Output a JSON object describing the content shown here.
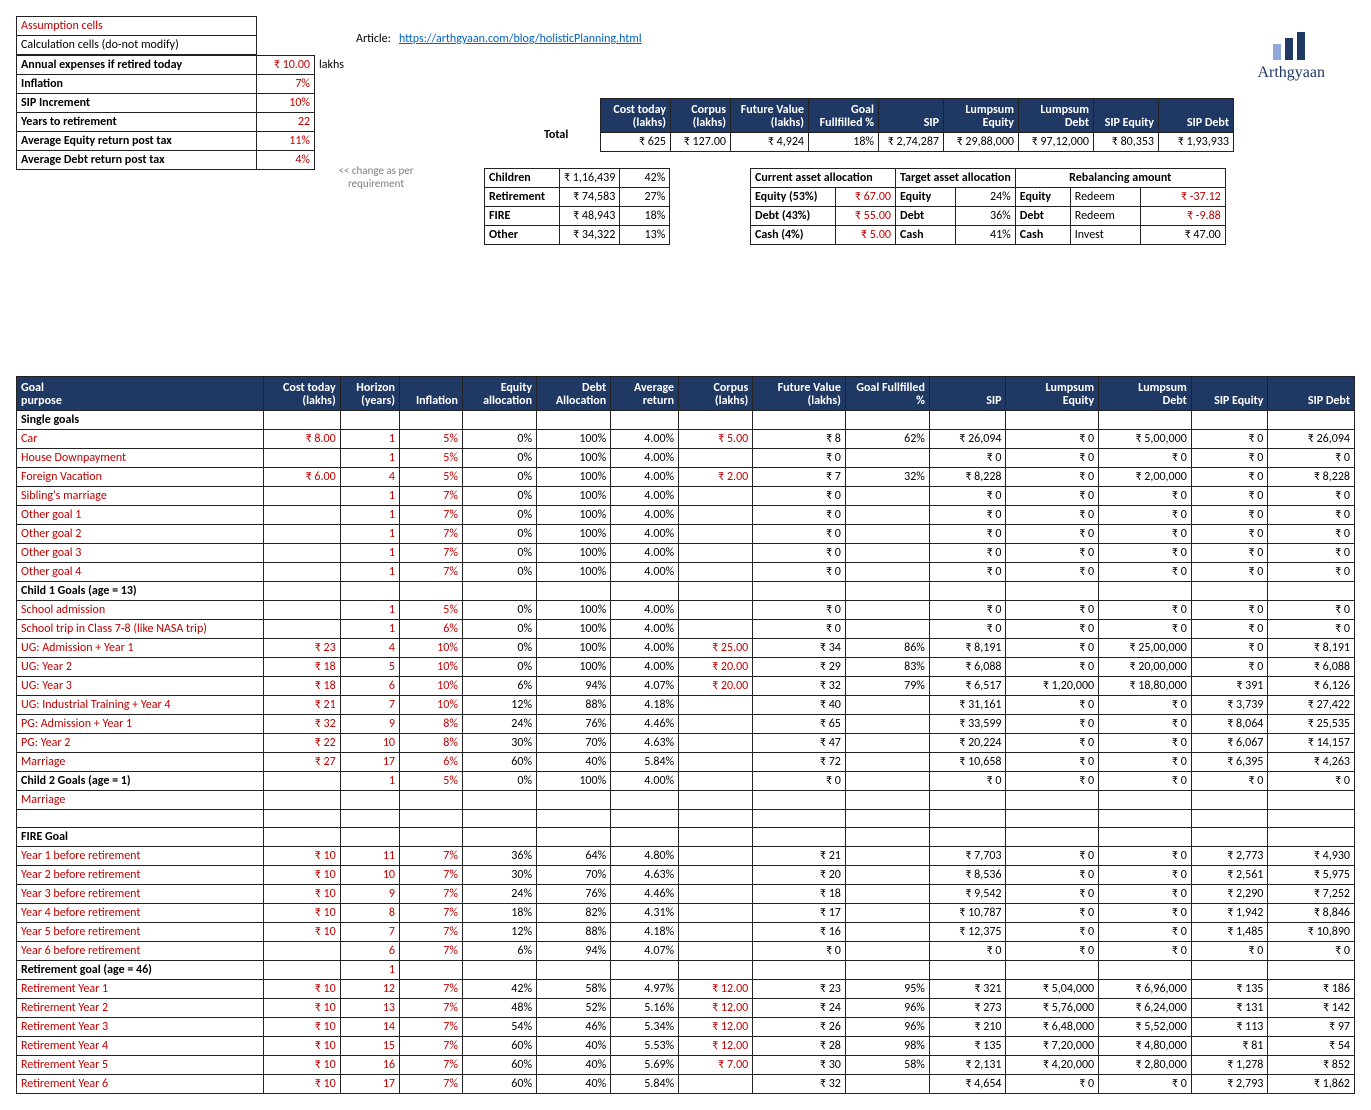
{
  "article_label": "Article:",
  "article_url": "https://arthgyaan.com/blog/holisticPlanning.html",
  "brand": "Arthgyaan",
  "brand_colors": [
    "#8fa8d9",
    "#1f3864",
    "#1f3864"
  ],
  "legend": {
    "assump": "Assumption cells",
    "calc": "Calculation cells (do-not modify)"
  },
  "assumptions": [
    {
      "label": "Annual expenses if retired today",
      "value": "₹ 10.00",
      "unit": "lakhs",
      "bold": true
    },
    {
      "label": "Inflation",
      "value": "7%",
      "bold": true
    },
    {
      "label": "SIP Increment",
      "value": "10%",
      "bold": true
    },
    {
      "label": "Years to retirement",
      "value": "22",
      "bold": true
    },
    {
      "label": "Average Equity return post tax",
      "value": "11%",
      "bold": true
    },
    {
      "label": "Average Debt return post tax",
      "value": "4%",
      "bold": true
    }
  ],
  "hint": "<< change as per requirement",
  "summary_header": [
    "Cost today (lakhs)",
    "Corpus (lakhs)",
    "Future Value (lakhs)",
    "Goal Fullfilled %",
    "SIP",
    "Lumpsum Equity",
    "Lumpsum Debt",
    "SIP Equity",
    "SIP Debt"
  ],
  "total_row": {
    "label": "Total",
    "cost": "₹ 625",
    "corpus": "₹ 127.00",
    "fv": "₹ 4,924",
    "ff": "18%",
    "sip": "₹ 2,74,287",
    "le": "₹ 29,88,000",
    "ld": "₹ 97,12,000",
    "se": "₹ 80,353",
    "sd": "₹ 1,93,933"
  },
  "categories": [
    {
      "name": "Children",
      "amount": "₹ 1,16,439",
      "pct": "42%"
    },
    {
      "name": "Retirement",
      "amount": "₹ 74,583",
      "pct": "27%"
    },
    {
      "name": "FIRE",
      "amount": "₹ 48,943",
      "pct": "18%"
    },
    {
      "name": "Other",
      "amount": "₹ 34,322",
      "pct": "13%"
    }
  ],
  "current_alloc": {
    "title": "Current asset allocation",
    "rows": [
      {
        "lbl": "Equity (53%)",
        "val": "₹ 67.00"
      },
      {
        "lbl": "Debt (43%)",
        "val": "₹ 55.00"
      },
      {
        "lbl": "Cash (4%)",
        "val": "₹ 5.00"
      }
    ]
  },
  "target_alloc": {
    "title": "Target asset allocation",
    "rows": [
      {
        "lbl": "Equity",
        "val": "24%"
      },
      {
        "lbl": "Debt",
        "val": "36%"
      },
      {
        "lbl": "Cash",
        "val": "41%"
      }
    ]
  },
  "rebal": {
    "title": "Rebalancing amount",
    "rows": [
      {
        "lbl": "Equity",
        "act": "Redeem",
        "val": "₹ -37.12",
        "red": true
      },
      {
        "lbl": "Debt",
        "act": "Redeem",
        "val": "₹ -9.88",
        "red": true
      },
      {
        "lbl": "Cash",
        "act": "Invest",
        "val": "₹ 47.00",
        "red": false
      }
    ]
  },
  "goal_header": [
    "Goal purpose",
    "Cost today (lakhs)",
    "Horizon (years)",
    "Inflation",
    "Equity allocation",
    "Debt Allocation",
    "Average return",
    "Corpus (lakhs)",
    "Future Value (lakhs)",
    "Goal Fullfilled %",
    "SIP",
    "Lumpsum Equity",
    "Lumpsum Debt",
    "SIP Equity",
    "SIP Debt"
  ],
  "sections": [
    {
      "title": "Single goals",
      "rows": [
        {
          "g": "Car",
          "cost": "₹ 8.00",
          "hor": "1",
          "inf": "5%",
          "ea": "0%",
          "da": "100%",
          "ar": "4.00%",
          "cor": "₹ 5.00",
          "fv": "₹ 8",
          "ff": "62%",
          "sip": "₹ 26,094",
          "le": "₹ 0",
          "ld": "₹ 5,00,000",
          "se": "₹ 0",
          "sd": "₹ 26,094"
        },
        {
          "g": "House Downpayment",
          "cost": "",
          "hor": "1",
          "inf": "5%",
          "ea": "0%",
          "da": "100%",
          "ar": "4.00%",
          "cor": "",
          "fv": "₹ 0",
          "ff": "",
          "sip": "₹ 0",
          "le": "₹ 0",
          "ld": "₹ 0",
          "se": "₹ 0",
          "sd": "₹ 0"
        },
        {
          "g": "Foreign Vacation",
          "cost": "₹ 6.00",
          "hor": "4",
          "inf": "5%",
          "ea": "0%",
          "da": "100%",
          "ar": "4.00%",
          "cor": "₹ 2.00",
          "fv": "₹ 7",
          "ff": "32%",
          "sip": "₹ 8,228",
          "le": "₹ 0",
          "ld": "₹ 2,00,000",
          "se": "₹ 0",
          "sd": "₹ 8,228"
        },
        {
          "g": "Sibling's marriage",
          "cost": "",
          "hor": "1",
          "inf": "7%",
          "ea": "0%",
          "da": "100%",
          "ar": "4.00%",
          "cor": "",
          "fv": "₹ 0",
          "ff": "",
          "sip": "₹ 0",
          "le": "₹ 0",
          "ld": "₹ 0",
          "se": "₹ 0",
          "sd": "₹ 0"
        },
        {
          "g": "Other goal 1",
          "cost": "",
          "hor": "1",
          "inf": "7%",
          "ea": "0%",
          "da": "100%",
          "ar": "4.00%",
          "cor": "",
          "fv": "₹ 0",
          "ff": "",
          "sip": "₹ 0",
          "le": "₹ 0",
          "ld": "₹ 0",
          "se": "₹ 0",
          "sd": "₹ 0"
        },
        {
          "g": "Other goal 2",
          "cost": "",
          "hor": "1",
          "inf": "7%",
          "ea": "0%",
          "da": "100%",
          "ar": "4.00%",
          "cor": "",
          "fv": "₹ 0",
          "ff": "",
          "sip": "₹ 0",
          "le": "₹ 0",
          "ld": "₹ 0",
          "se": "₹ 0",
          "sd": "₹ 0"
        },
        {
          "g": "Other goal 3",
          "cost": "",
          "hor": "1",
          "inf": "7%",
          "ea": "0%",
          "da": "100%",
          "ar": "4.00%",
          "cor": "",
          "fv": "₹ 0",
          "ff": "",
          "sip": "₹ 0",
          "le": "₹ 0",
          "ld": "₹ 0",
          "se": "₹ 0",
          "sd": "₹ 0"
        },
        {
          "g": "Other goal 4",
          "cost": "",
          "hor": "1",
          "inf": "7%",
          "ea": "0%",
          "da": "100%",
          "ar": "4.00%",
          "cor": "",
          "fv": "₹ 0",
          "ff": "",
          "sip": "₹ 0",
          "le": "₹ 0",
          "ld": "₹ 0",
          "se": "₹ 0",
          "sd": "₹ 0"
        }
      ]
    },
    {
      "title": "Child 1 Goals (age = 13)",
      "rows": [
        {
          "g": "School admission",
          "cost": "",
          "hor": "1",
          "inf": "5%",
          "ea": "0%",
          "da": "100%",
          "ar": "4.00%",
          "cor": "",
          "fv": "₹ 0",
          "ff": "",
          "sip": "₹ 0",
          "le": "₹ 0",
          "ld": "₹ 0",
          "se": "₹ 0",
          "sd": "₹ 0"
        },
        {
          "g": "School trip in Class 7-8 (like NASA trip)",
          "cost": "",
          "hor": "1",
          "inf": "6%",
          "ea": "0%",
          "da": "100%",
          "ar": "4.00%",
          "cor": "",
          "fv": "₹ 0",
          "ff": "",
          "sip": "₹ 0",
          "le": "₹ 0",
          "ld": "₹ 0",
          "se": "₹ 0",
          "sd": "₹ 0"
        },
        {
          "g": "UG: Admission + Year 1",
          "cost": "₹ 23",
          "hor": "4",
          "inf": "10%",
          "ea": "0%",
          "da": "100%",
          "ar": "4.00%",
          "cor": "₹ 25.00",
          "fv": "₹ 34",
          "ff": "86%",
          "sip": "₹ 8,191",
          "le": "₹ 0",
          "ld": "₹ 25,00,000",
          "se": "₹ 0",
          "sd": "₹ 8,191"
        },
        {
          "g": "UG: Year 2",
          "cost": "₹ 18",
          "hor": "5",
          "inf": "10%",
          "ea": "0%",
          "da": "100%",
          "ar": "4.00%",
          "cor": "₹ 20.00",
          "fv": "₹ 29",
          "ff": "83%",
          "sip": "₹ 6,088",
          "le": "₹ 0",
          "ld": "₹ 20,00,000",
          "se": "₹ 0",
          "sd": "₹ 6,088"
        },
        {
          "g": "UG: Year 3",
          "cost": "₹ 18",
          "hor": "6",
          "inf": "10%",
          "ea": "6%",
          "da": "94%",
          "ar": "4.07%",
          "cor": "₹ 20.00",
          "fv": "₹ 32",
          "ff": "79%",
          "sip": "₹ 6,517",
          "le": "₹ 1,20,000",
          "ld": "₹ 18,80,000",
          "se": "₹ 391",
          "sd": "₹ 6,126"
        },
        {
          "g": "UG: Industrial Training + Year 4",
          "cost": "₹ 21",
          "hor": "7",
          "inf": "10%",
          "ea": "12%",
          "da": "88%",
          "ar": "4.18%",
          "cor": "",
          "fv": "₹ 40",
          "ff": "",
          "sip": "₹ 31,161",
          "le": "₹ 0",
          "ld": "₹ 0",
          "se": "₹ 3,739",
          "sd": "₹ 27,422"
        },
        {
          "g": "PG: Admission + Year 1",
          "cost": "₹ 32",
          "hor": "9",
          "inf": "8%",
          "ea": "24%",
          "da": "76%",
          "ar": "4.46%",
          "cor": "",
          "fv": "₹ 65",
          "ff": "",
          "sip": "₹ 33,599",
          "le": "₹ 0",
          "ld": "₹ 0",
          "se": "₹ 8,064",
          "sd": "₹ 25,535"
        },
        {
          "g": "PG: Year 2",
          "cost": "₹ 22",
          "hor": "10",
          "inf": "8%",
          "ea": "30%",
          "da": "70%",
          "ar": "4.63%",
          "cor": "",
          "fv": "₹ 47",
          "ff": "",
          "sip": "₹ 20,224",
          "le": "₹ 0",
          "ld": "₹ 0",
          "se": "₹ 6,067",
          "sd": "₹ 14,157"
        },
        {
          "g": "Marriage",
          "cost": "₹ 27",
          "hor": "17",
          "inf": "6%",
          "ea": "60%",
          "da": "40%",
          "ar": "5.84%",
          "cor": "",
          "fv": "₹ 72",
          "ff": "",
          "sip": "₹ 10,658",
          "le": "₹ 0",
          "ld": "₹ 0",
          "se": "₹ 6,395",
          "sd": "₹ 4,263"
        }
      ]
    },
    {
      "title": "Child 2 Goals (age = 1)",
      "title_row_extra": {
        "hor": "1",
        "inf": "5%",
        "ea": "0%",
        "da": "100%",
        "ar": "4.00%",
        "fv": "₹ 0",
        "sip": "₹ 0",
        "le": "₹ 0",
        "ld": "₹ 0",
        "se": "₹ 0",
        "sd": "₹ 0"
      },
      "rows": [
        {
          "g": "Marriage",
          "cost": "",
          "hor": "",
          "inf": "",
          "ea": "",
          "da": "",
          "ar": "",
          "cor": "",
          "fv": "",
          "ff": "",
          "sip": "",
          "le": "",
          "ld": "",
          "se": "",
          "sd": ""
        },
        {
          "g": "",
          "cost": "",
          "hor": "",
          "inf": "",
          "ea": "",
          "da": "",
          "ar": "",
          "cor": "",
          "fv": "",
          "ff": "",
          "sip": "",
          "le": "",
          "ld": "",
          "se": "",
          "sd": ""
        }
      ]
    },
    {
      "title": "FIRE Goal",
      "rows": [
        {
          "g": "Year 1 before retirement",
          "cost": "₹ 10",
          "hor": "11",
          "inf": "7%",
          "ea": "36%",
          "da": "64%",
          "ar": "4.80%",
          "cor": "",
          "fv": "₹ 21",
          "ff": "",
          "sip": "₹ 7,703",
          "le": "₹ 0",
          "ld": "₹ 0",
          "se": "₹ 2,773",
          "sd": "₹ 4,930"
        },
        {
          "g": "Year 2 before retirement",
          "cost": "₹ 10",
          "hor": "10",
          "inf": "7%",
          "ea": "30%",
          "da": "70%",
          "ar": "4.63%",
          "cor": "",
          "fv": "₹ 20",
          "ff": "",
          "sip": "₹ 8,536",
          "le": "₹ 0",
          "ld": "₹ 0",
          "se": "₹ 2,561",
          "sd": "₹ 5,975"
        },
        {
          "g": "Year 3 before retirement",
          "cost": "₹ 10",
          "hor": "9",
          "inf": "7%",
          "ea": "24%",
          "da": "76%",
          "ar": "4.46%",
          "cor": "",
          "fv": "₹ 18",
          "ff": "",
          "sip": "₹ 9,542",
          "le": "₹ 0",
          "ld": "₹ 0",
          "se": "₹ 2,290",
          "sd": "₹ 7,252"
        },
        {
          "g": "Year 4 before retirement",
          "cost": "₹ 10",
          "hor": "8",
          "inf": "7%",
          "ea": "18%",
          "da": "82%",
          "ar": "4.31%",
          "cor": "",
          "fv": "₹ 17",
          "ff": "",
          "sip": "₹ 10,787",
          "le": "₹ 0",
          "ld": "₹ 0",
          "se": "₹ 1,942",
          "sd": "₹ 8,846"
        },
        {
          "g": "Year 5 before retirement",
          "cost": "₹ 10",
          "hor": "7",
          "inf": "7%",
          "ea": "12%",
          "da": "88%",
          "ar": "4.18%",
          "cor": "",
          "fv": "₹ 16",
          "ff": "",
          "sip": "₹ 12,375",
          "le": "₹ 0",
          "ld": "₹ 0",
          "se": "₹ 1,485",
          "sd": "₹ 10,890"
        },
        {
          "g": "Year 6 before retirement",
          "cost": "",
          "hor": "6",
          "inf": "7%",
          "ea": "6%",
          "da": "94%",
          "ar": "4.07%",
          "cor": "",
          "fv": "₹ 0",
          "ff": "",
          "sip": "₹ 0",
          "le": "₹ 0",
          "ld": "₹ 0",
          "se": "₹ 0",
          "sd": "₹ 0"
        }
      ]
    },
    {
      "title": "Retirement goal (age = 46)",
      "title_row_extra": {
        "hor": "1"
      },
      "rows": [
        {
          "g": "Retirement Year 1",
          "cost": "₹ 10",
          "hor": "12",
          "inf": "7%",
          "ea": "42%",
          "da": "58%",
          "ar": "4.97%",
          "cor": "₹ 12.00",
          "fv": "₹ 23",
          "ff": "95%",
          "sip": "₹ 321",
          "le": "₹ 5,04,000",
          "ld": "₹ 6,96,000",
          "se": "₹ 135",
          "sd": "₹ 186"
        },
        {
          "g": "Retirement Year 2",
          "cost": "₹ 10",
          "hor": "13",
          "inf": "7%",
          "ea": "48%",
          "da": "52%",
          "ar": "5.16%",
          "cor": "₹ 12.00",
          "fv": "₹ 24",
          "ff": "96%",
          "sip": "₹ 273",
          "le": "₹ 5,76,000",
          "ld": "₹ 6,24,000",
          "se": "₹ 131",
          "sd": "₹ 142"
        },
        {
          "g": "Retirement Year 3",
          "cost": "₹ 10",
          "hor": "14",
          "inf": "7%",
          "ea": "54%",
          "da": "46%",
          "ar": "5.34%",
          "cor": "₹ 12.00",
          "fv": "₹ 26",
          "ff": "96%",
          "sip": "₹ 210",
          "le": "₹ 6,48,000",
          "ld": "₹ 5,52,000",
          "se": "₹ 113",
          "sd": "₹ 97"
        },
        {
          "g": "Retirement Year 4",
          "cost": "₹ 10",
          "hor": "15",
          "inf": "7%",
          "ea": "60%",
          "da": "40%",
          "ar": "5.53%",
          "cor": "₹ 12.00",
          "fv": "₹ 28",
          "ff": "98%",
          "sip": "₹ 135",
          "le": "₹ 7,20,000",
          "ld": "₹ 4,80,000",
          "se": "₹ 81",
          "sd": "₹ 54"
        },
        {
          "g": "Retirement Year 5",
          "cost": "₹ 10",
          "hor": "16",
          "inf": "7%",
          "ea": "60%",
          "da": "40%",
          "ar": "5.69%",
          "cor": "₹ 7.00",
          "fv": "₹ 30",
          "ff": "58%",
          "sip": "₹ 2,131",
          "le": "₹ 4,20,000",
          "ld": "₹ 2,80,000",
          "se": "₹ 1,278",
          "sd": "₹ 852"
        },
        {
          "g": "Retirement Year 6",
          "cost": "₹ 10",
          "hor": "17",
          "inf": "7%",
          "ea": "60%",
          "da": "40%",
          "ar": "5.84%",
          "cor": "",
          "fv": "₹ 32",
          "ff": "",
          "sip": "₹ 4,654",
          "le": "₹ 0",
          "ld": "₹ 0",
          "se": "₹ 2,793",
          "sd": "₹ 1,862"
        }
      ]
    }
  ]
}
